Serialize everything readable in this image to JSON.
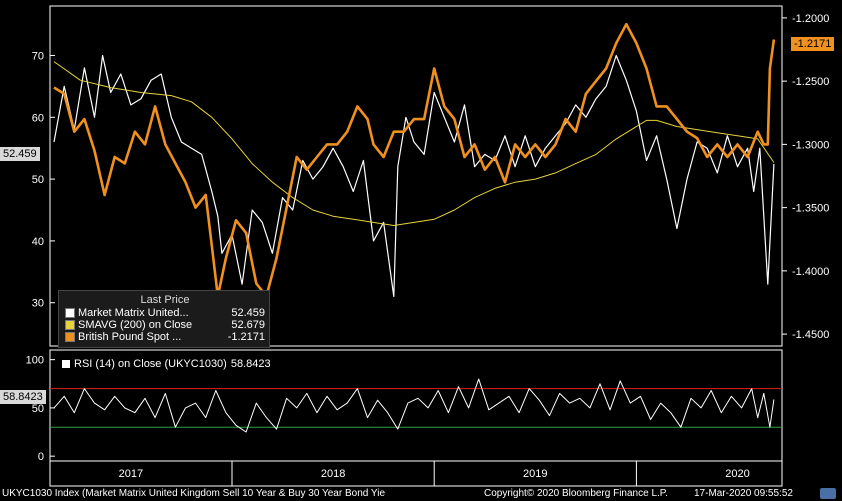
{
  "chart_data": [
    {
      "type": "line",
      "panel": "main",
      "left_axis": {
        "ylim": [
          23,
          78
        ],
        "ticks": [
          30,
          40,
          50,
          60,
          70
        ]
      },
      "right_axis": {
        "ylim": [
          -1.4594,
          -1.1906
        ],
        "ticks": [
          "-1.2000",
          "-1.2500",
          "-1.3000",
          "-1.3500",
          "-1.4000",
          "-1.4500"
        ]
      },
      "x_labels": [
        {
          "label": "2017",
          "x": 2017.0
        },
        {
          "label": "2018",
          "x": 2018.0
        },
        {
          "label": "2019",
          "x": 2019.0
        },
        {
          "label": "2020",
          "x": 2020.0
        }
      ],
      "xlim": [
        2016.6,
        2020.22
      ],
      "legend": {
        "header": "Last Price",
        "placement": "bottom-left",
        "entries": [
          {
            "name": "Market Matrix United...",
            "value": "52.459",
            "color": "#ffffff"
          },
          {
            "name": "SMAVG (200)  on Close",
            "value": "52.679",
            "color": "#e6d23c"
          },
          {
            "name": "British Pound Spot  ...",
            "value": "-1.2171",
            "color": "#f0901e"
          }
        ]
      },
      "last_value_tags": {
        "left": "52.459",
        "right": "-1.2171"
      },
      "series": [
        {
          "name": "Market Matrix United...",
          "axis": "left",
          "color": "#ffffff",
          "x": [
            2016.62,
            2016.67,
            2016.72,
            2016.77,
            2016.82,
            2016.86,
            2016.9,
            2016.95,
            2017.0,
            2017.05,
            2017.1,
            2017.15,
            2017.2,
            2017.25,
            2017.3,
            2017.35,
            2017.4,
            2017.43,
            2017.45,
            2017.5,
            2017.55,
            2017.6,
            2017.65,
            2017.7,
            2017.75,
            2017.8,
            2017.85,
            2017.9,
            2017.95,
            2018.0,
            2018.05,
            2018.1,
            2018.15,
            2018.2,
            2018.25,
            2018.3,
            2018.32,
            2018.36,
            2018.4,
            2018.45,
            2018.5,
            2018.55,
            2018.6,
            2018.65,
            2018.7,
            2018.75,
            2018.8,
            2018.85,
            2018.9,
            2018.95,
            2019.0,
            2019.05,
            2019.1,
            2019.15,
            2019.2,
            2019.25,
            2019.3,
            2019.35,
            2019.4,
            2019.45,
            2019.5,
            2019.55,
            2019.6,
            2019.65,
            2019.7,
            2019.75,
            2019.8,
            2019.85,
            2019.9,
            2019.95,
            2020.0,
            2020.05,
            2020.08,
            2020.11,
            2020.13,
            2020.15,
            2020.18
          ],
          "y": [
            56,
            65,
            58,
            68,
            60,
            70,
            64,
            67,
            62,
            63,
            66,
            67,
            60,
            56,
            55,
            54,
            48,
            44,
            38,
            41,
            33,
            45,
            43,
            38,
            47,
            45,
            53,
            50,
            52,
            55,
            52,
            48,
            53,
            40,
            43,
            31,
            52,
            60,
            56,
            54,
            64,
            60,
            56,
            62,
            52,
            54,
            53,
            57,
            52,
            57,
            52,
            55,
            57,
            59,
            62,
            60,
            63,
            65,
            70,
            66,
            61,
            53,
            57,
            50,
            42,
            50,
            56,
            55,
            51,
            57,
            52,
            55,
            48,
            55,
            44,
            33,
            52.459
          ]
        },
        {
          "name": "SMAVG (200)  on Close",
          "axis": "left",
          "color": "#e6d23c",
          "x": [
            2016.62,
            2016.75,
            2016.9,
            2017.05,
            2017.2,
            2017.3,
            2017.4,
            2017.5,
            2017.6,
            2017.7,
            2017.8,
            2017.9,
            2018.0,
            2018.1,
            2018.2,
            2018.3,
            2018.4,
            2018.5,
            2018.6,
            2018.7,
            2018.8,
            2018.9,
            2019.0,
            2019.1,
            2019.2,
            2019.3,
            2019.4,
            2019.5,
            2019.55,
            2019.6,
            2019.7,
            2019.8,
            2019.9,
            2020.0,
            2020.1,
            2020.18
          ],
          "y": [
            69,
            66,
            64.8,
            64,
            63.5,
            62.5,
            60,
            56.5,
            52.5,
            49.5,
            47,
            45,
            44,
            43.5,
            43,
            42.5,
            43,
            43.5,
            45,
            47,
            48.5,
            49.5,
            50,
            51,
            52.5,
            54,
            56.5,
            58.5,
            59.5,
            59.5,
            58.5,
            58,
            57.5,
            57,
            56.5,
            52.679
          ]
        },
        {
          "name": "British Pound Spot  ...",
          "axis": "right",
          "color": "#f0901e",
          "x": [
            2016.62,
            2016.67,
            2016.72,
            2016.77,
            2016.82,
            2016.87,
            2016.92,
            2016.97,
            2017.02,
            2017.07,
            2017.12,
            2017.17,
            2017.22,
            2017.27,
            2017.32,
            2017.37,
            2017.4,
            2017.43,
            2017.47,
            2017.52,
            2017.57,
            2017.62,
            2017.67,
            2017.72,
            2017.77,
            2017.82,
            2017.87,
            2017.92,
            2017.97,
            2018.02,
            2018.07,
            2018.12,
            2018.17,
            2018.2,
            2018.25,
            2018.3,
            2018.35,
            2018.4,
            2018.45,
            2018.5,
            2018.55,
            2018.6,
            2018.65,
            2018.7,
            2018.75,
            2018.8,
            2018.85,
            2018.9,
            2018.95,
            2019.0,
            2019.05,
            2019.1,
            2019.15,
            2019.2,
            2019.25,
            2019.3,
            2019.35,
            2019.4,
            2019.45,
            2019.5,
            2019.55,
            2019.6,
            2019.65,
            2019.7,
            2019.75,
            2019.8,
            2019.85,
            2019.9,
            2019.95,
            2020.0,
            2020.05,
            2020.1,
            2020.13,
            2020.15,
            2020.16,
            2020.18
          ],
          "y": [
            -1.255,
            -1.26,
            -1.29,
            -1.28,
            -1.305,
            -1.34,
            -1.31,
            -1.315,
            -1.29,
            -1.3,
            -1.27,
            -1.3,
            -1.315,
            -1.33,
            -1.35,
            -1.34,
            -1.38,
            -1.42,
            -1.39,
            -1.36,
            -1.37,
            -1.41,
            -1.42,
            -1.39,
            -1.35,
            -1.31,
            -1.32,
            -1.31,
            -1.3,
            -1.3,
            -1.29,
            -1.27,
            -1.28,
            -1.3,
            -1.31,
            -1.29,
            -1.29,
            -1.28,
            -1.28,
            -1.24,
            -1.27,
            -1.28,
            -1.31,
            -1.3,
            -1.32,
            -1.31,
            -1.33,
            -1.3,
            -1.31,
            -1.3,
            -1.31,
            -1.3,
            -1.28,
            -1.29,
            -1.26,
            -1.25,
            -1.24,
            -1.22,
            -1.205,
            -1.22,
            -1.24,
            -1.27,
            -1.27,
            -1.28,
            -1.29,
            -1.295,
            -1.31,
            -1.3,
            -1.31,
            -1.3,
            -1.31,
            -1.29,
            -1.3,
            -1.3,
            -1.24,
            -1.2171
          ]
        }
      ]
    },
    {
      "type": "line",
      "panel": "rsi",
      "ylim": [
        -5,
        110
      ],
      "ticks": [
        0,
        50,
        100
      ],
      "legend": {
        "label": "RSI (14)  on Close (UKYC1030)",
        "value": "58.8423"
      },
      "last_value_tag": "58.8423",
      "levels": [
        {
          "value": 70,
          "color": "#e02020"
        },
        {
          "value": 30,
          "color": "#2ea043"
        }
      ],
      "series": [
        {
          "name": "RSI (14)  on Close (UKYC1030)",
          "color": "#ffffff",
          "x": [
            2016.62,
            2016.67,
            2016.72,
            2016.77,
            2016.82,
            2016.87,
            2016.92,
            2016.97,
            2017.02,
            2017.07,
            2017.12,
            2017.17,
            2017.22,
            2017.27,
            2017.32,
            2017.37,
            2017.42,
            2017.47,
            2017.52,
            2017.57,
            2017.62,
            2017.67,
            2017.72,
            2017.77,
            2017.82,
            2017.87,
            2017.92,
            2017.97,
            2018.02,
            2018.07,
            2018.12,
            2018.17,
            2018.22,
            2018.27,
            2018.32,
            2018.37,
            2018.42,
            2018.47,
            2018.52,
            2018.57,
            2018.62,
            2018.67,
            2018.72,
            2018.77,
            2018.82,
            2018.87,
            2018.92,
            2018.97,
            2019.02,
            2019.07,
            2019.12,
            2019.17,
            2019.22,
            2019.27,
            2019.32,
            2019.37,
            2019.42,
            2019.47,
            2019.52,
            2019.57,
            2019.62,
            2019.67,
            2019.72,
            2019.77,
            2019.82,
            2019.87,
            2019.92,
            2019.97,
            2020.02,
            2020.07,
            2020.1,
            2020.13,
            2020.16,
            2020.18
          ],
          "y": [
            50,
            62,
            45,
            70,
            55,
            48,
            62,
            50,
            45,
            60,
            40,
            65,
            30,
            50,
            55,
            40,
            68,
            45,
            32,
            25,
            55,
            40,
            28,
            60,
            50,
            65,
            45,
            62,
            48,
            55,
            70,
            40,
            58,
            45,
            28,
            55,
            60,
            50,
            68,
            45,
            72,
            50,
            80,
            48,
            55,
            62,
            45,
            70,
            58,
            42,
            65,
            55,
            60,
            50,
            75,
            48,
            78,
            55,
            62,
            38,
            55,
            45,
            30,
            60,
            50,
            68,
            45,
            62,
            50,
            70,
            40,
            65,
            30,
            58.8423
          ]
        }
      ]
    }
  ],
  "footer": {
    "left": "UKYC1030 Index (Market Matrix United Kingdom Sell 10 Year & Buy 30 Year Bond Yie",
    "center": "Copyright© 2020 Bloomberg Finance L.P.",
    "right": "17-Mar-2020 09:55:52"
  },
  "colors": {
    "background": "#000000",
    "axis": "#ffffff",
    "white_series": "#ffffff",
    "sma": "#e6d23c",
    "gbp": "#f0901e",
    "rsi_high": "#e02020",
    "rsi_low": "#2ea043",
    "tag_bg": "#d9d9d9",
    "tag_orange": "#f0901e"
  }
}
